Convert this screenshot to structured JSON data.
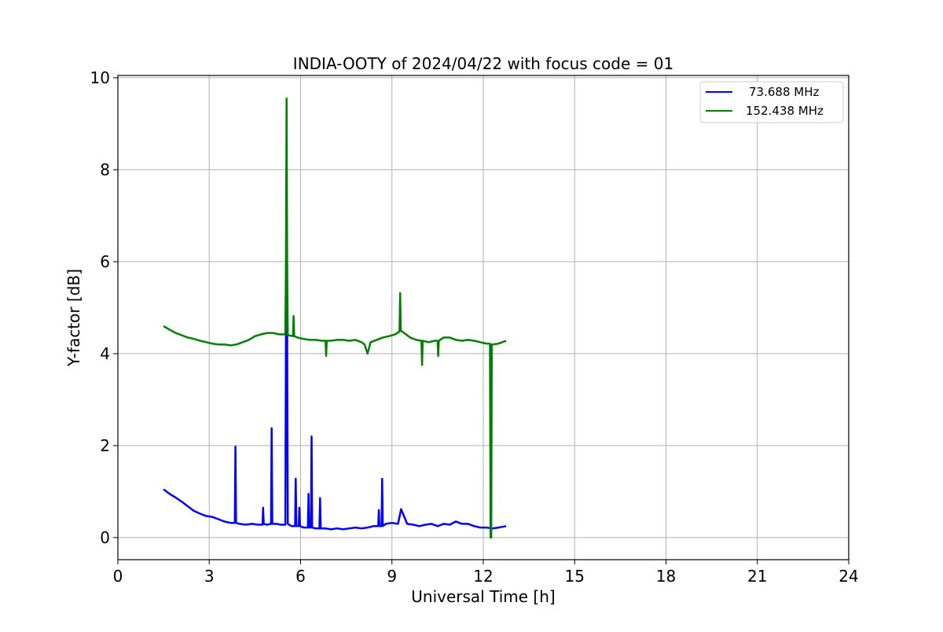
{
  "chart_data": {
    "type": "line",
    "title": "INDIA-OOTY of 2024/04/22 with focus code = 01",
    "xlabel": "Universal Time [h]",
    "ylabel": "Y-factor [dB]",
    "xlim": [
      0,
      24
    ],
    "ylim": [
      -0.48,
      10.05
    ],
    "xticks": [
      0,
      3,
      6,
      9,
      12,
      15,
      18,
      21,
      24
    ],
    "xtick_labels": [
      "0",
      "3",
      "6",
      "9",
      "12",
      "15",
      "18",
      "21",
      "24"
    ],
    "yticks": [
      0,
      2,
      4,
      6,
      8,
      10
    ],
    "ytick_labels": [
      "0",
      "2",
      "4",
      "6",
      "8",
      "10"
    ],
    "grid": true,
    "legend_position": "top-right",
    "series": [
      {
        "name": "73.688 MHz",
        "color": "#0000ff",
        "x": [
          1.5,
          1.7,
          1.9,
          2.1,
          2.3,
          2.5,
          2.7,
          2.9,
          3.1,
          3.3,
          3.5,
          3.7,
          3.84,
          3.86,
          3.88,
          4.0,
          4.2,
          4.4,
          4.6,
          4.75,
          4.77,
          4.79,
          4.9,
          5.03,
          5.05,
          5.07,
          5.2,
          5.35,
          5.5,
          5.52,
          5.54,
          5.56,
          5.58,
          5.7,
          5.82,
          5.84,
          5.86,
          5.94,
          5.96,
          5.98,
          6.1,
          6.24,
          6.26,
          6.28,
          6.34,
          6.36,
          6.38,
          6.5,
          6.62,
          6.64,
          6.66,
          6.8,
          7.0,
          7.2,
          7.4,
          7.6,
          7.8,
          8.0,
          8.2,
          8.4,
          8.55,
          8.57,
          8.59,
          8.66,
          8.68,
          8.7,
          8.8,
          9.0,
          9.2,
          9.3,
          9.5,
          9.7,
          9.9,
          10.1,
          10.3,
          10.5,
          10.7,
          10.9,
          11.1,
          11.3,
          11.5,
          11.7,
          11.9,
          12.1,
          12.3,
          12.5,
          12.75
        ],
        "y": [
          1.05,
          0.95,
          0.87,
          0.78,
          0.68,
          0.58,
          0.52,
          0.47,
          0.45,
          0.4,
          0.35,
          0.32,
          0.32,
          1.98,
          0.32,
          0.3,
          0.28,
          0.3,
          0.28,
          0.28,
          0.65,
          0.3,
          0.28,
          0.3,
          2.38,
          0.3,
          0.3,
          0.28,
          0.28,
          4.5,
          5.3,
          4.5,
          0.3,
          0.25,
          0.25,
          1.28,
          0.25,
          0.25,
          0.65,
          0.25,
          0.22,
          0.22,
          0.95,
          0.22,
          0.22,
          2.2,
          0.22,
          0.2,
          0.2,
          0.86,
          0.2,
          0.2,
          0.18,
          0.2,
          0.18,
          0.2,
          0.22,
          0.2,
          0.22,
          0.25,
          0.25,
          0.6,
          0.25,
          0.25,
          1.28,
          0.25,
          0.3,
          0.32,
          0.3,
          0.62,
          0.3,
          0.28,
          0.25,
          0.28,
          0.3,
          0.25,
          0.3,
          0.28,
          0.35,
          0.3,
          0.3,
          0.25,
          0.22,
          0.22,
          0.2,
          0.22,
          0.25
        ]
      },
      {
        "name": "152.438 MHz",
        "color": "#008000",
        "x": [
          1.5,
          1.7,
          1.9,
          2.1,
          2.3,
          2.5,
          2.7,
          2.9,
          3.1,
          3.3,
          3.5,
          3.7,
          3.9,
          4.1,
          4.3,
          4.5,
          4.7,
          4.9,
          5.1,
          5.3,
          5.5,
          5.52,
          5.54,
          5.56,
          5.58,
          5.6,
          5.75,
          5.77,
          5.79,
          5.9,
          6.1,
          6.3,
          6.5,
          6.7,
          6.82,
          6.84,
          6.86,
          7.0,
          7.2,
          7.4,
          7.6,
          7.8,
          8.0,
          8.1,
          8.2,
          8.3,
          8.5,
          8.7,
          8.9,
          9.1,
          9.25,
          9.27,
          9.29,
          9.4,
          9.6,
          9.8,
          9.97,
          9.99,
          10.01,
          10.2,
          10.4,
          10.5,
          10.52,
          10.54,
          10.7,
          10.9,
          11.1,
          11.3,
          11.5,
          11.7,
          11.9,
          12.1,
          12.22,
          12.24,
          12.26,
          12.28,
          12.3,
          12.5,
          12.75
        ],
        "y": [
          4.6,
          4.52,
          4.45,
          4.4,
          4.35,
          4.32,
          4.28,
          4.25,
          4.22,
          4.2,
          4.2,
          4.18,
          4.2,
          4.25,
          4.3,
          4.38,
          4.42,
          4.45,
          4.45,
          4.42,
          4.42,
          6.0,
          9.55,
          6.0,
          4.42,
          4.4,
          4.38,
          4.82,
          4.38,
          4.35,
          4.32,
          4.3,
          4.3,
          4.28,
          4.28,
          3.95,
          4.28,
          4.28,
          4.3,
          4.3,
          4.28,
          4.3,
          4.25,
          4.2,
          4.0,
          4.25,
          4.3,
          4.35,
          4.38,
          4.42,
          4.48,
          5.32,
          4.5,
          4.45,
          4.35,
          4.3,
          4.28,
          3.75,
          4.28,
          4.25,
          4.28,
          4.28,
          3.95,
          4.28,
          4.35,
          4.35,
          4.3,
          4.28,
          4.3,
          4.28,
          4.25,
          4.22,
          4.22,
          0.0,
          0.0,
          4.2,
          4.2,
          4.22,
          4.28
        ]
      }
    ]
  }
}
